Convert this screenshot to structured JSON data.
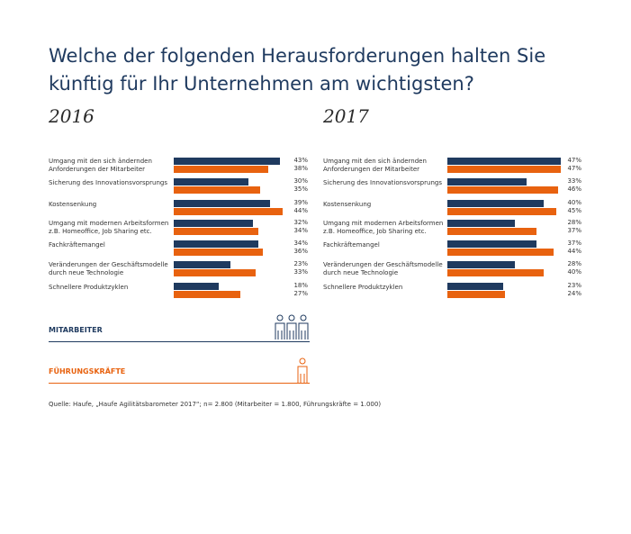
{
  "title": "Welche der folgenden Herausforderungen halten Sie künftig für Ihr Unternehmen am wichtigsten?",
  "colors": {
    "mitarbeiter": "#1f3a5f",
    "fuehrungskraefte": "#e8620f"
  },
  "legend": {
    "mitarbeiter": "MITARBEITER",
    "fuehrungskraefte": "FÜHRUNGSKRÄFTE"
  },
  "source": "Quelle: Haufe, „Haufe Agilitätsbarometer 2017“; n= 2.800 (Mitarbeiter = 1.800, Führungskräfte = 1.000)",
  "chart_data": [
    {
      "type": "bar",
      "orientation": "horizontal",
      "title": "2016",
      "unit": "%",
      "categories": [
        "Umgang mit den sich ändernden Anforderungen der Mitarbeiter",
        "Sicherung des Innovationsvorsprungs",
        "Kostensenkung",
        "Umgang mit modernen Arbeitsformen z.B. Homeoffice, Job Sharing etc.",
        "Fachkräftemangel",
        "Veränderungen der Geschäftsmodelle durch neue Technologie",
        "Schnellere Produktzyklen"
      ],
      "category_lines": [
        [
          "Umgang mit den sich ändernden",
          "Anforderungen der Mitarbeiter"
        ],
        [
          "Sicherung des Innovationsvorsprungs"
        ],
        [
          "Kostensenkung"
        ],
        [
          "Umgang mit modernen Arbeitsformen",
          "z.B. Homeoffice, Job Sharing etc."
        ],
        [
          "Fachkräftemangel"
        ],
        [
          "Veränderungen der Geschäftsmodelle",
          "durch neue Technologie"
        ],
        [
          "Schnellere Produktzyklen"
        ]
      ],
      "series": [
        {
          "name": "MITARBEITER",
          "values": [
            43,
            30,
            39,
            32,
            34,
            23,
            18
          ]
        },
        {
          "name": "FÜHRUNGSKRÄFTE",
          "values": [
            38,
            35,
            44,
            34,
            36,
            33,
            27
          ]
        }
      ]
    },
    {
      "type": "bar",
      "orientation": "horizontal",
      "title": "2017",
      "unit": "%",
      "categories": [
        "Umgang mit den sich ändernden Anforderungen der Mitarbeiter",
        "Sicherung des Innovationsvorsprungs",
        "Kostensenkung",
        "Umgang mit modernen Arbeitsformen z.B. Homeoffice, Job Sharing etc.",
        "Fachkräftemangel",
        "Veränderungen der Geschäftsmodelle durch neue Technologie",
        "Schnellere Produktzyklen"
      ],
      "category_lines": [
        [
          "Umgang mit den sich ändernden",
          "Anforderungen der Mitarbeiter"
        ],
        [
          "Sicherung des Innovationsvorsprungs"
        ],
        [
          "Kostensenkung"
        ],
        [
          "Umgang mit modernen Arbeitsformen",
          "z.B. Homeoffice, Job Sharing etc."
        ],
        [
          "Fachkräftemangel"
        ],
        [
          "Veränderungen der Geschäftsmodelle",
          "durch neue Technologie"
        ],
        [
          "Schnellere Produktzyklen"
        ]
      ],
      "series": [
        {
          "name": "MITARBEITER",
          "values": [
            47,
            33,
            40,
            28,
            37,
            28,
            23
          ]
        },
        {
          "name": "FÜHRUNGSKRÄFTE",
          "values": [
            47,
            46,
            45,
            37,
            44,
            40,
            24
          ]
        }
      ]
    }
  ]
}
